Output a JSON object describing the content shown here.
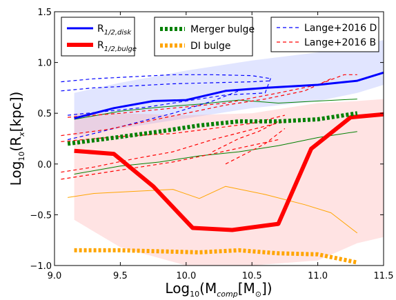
{
  "chart_data": {
    "type": "line",
    "xlabel": {
      "base": "Log",
      "base_sub": "10",
      "open": "(M",
      "sub": "comp",
      "mid": "[M",
      "sun": "⊙",
      "close": "])"
    },
    "ylabel": {
      "base": "Log",
      "base_sub": "10",
      "open": "(R",
      "sub": "x",
      "close": "[kpc])"
    },
    "xlim": [
      9.0,
      11.5
    ],
    "ylim": [
      -1.0,
      1.5
    ],
    "xticks": [
      "9.0",
      "9.5",
      "10.0",
      "10.5",
      "11.0",
      "11.5"
    ],
    "yticks": [
      "−1.0",
      "−0.5",
      "0.0",
      "0.5",
      "1.0",
      "1.5"
    ],
    "xtick_values": [
      9.0,
      9.5,
      10.0,
      10.5,
      11.0,
      11.5
    ],
    "ytick_values": [
      -1.0,
      -0.5,
      0.0,
      0.5,
      1.0,
      1.5
    ],
    "grid": false,
    "legends": [
      {
        "placement": "top-left",
        "entries": [
          {
            "label": "R",
            "sub": "1/2,disk",
            "color": "#0000ff",
            "style": "solid-thick"
          },
          {
            "label": "R",
            "sub": "1/2,bulge",
            "color": "#ff0000",
            "style": "solid-extra-thick"
          }
        ]
      },
      {
        "placement": "top-center",
        "entries": [
          {
            "label": "Merger bulge",
            "color": "#008000",
            "style": "dashdot-thick"
          },
          {
            "label": "DI bulge",
            "color": "#ffa500",
            "style": "dashdot-thick"
          }
        ]
      },
      {
        "placement": "top-right",
        "entries": [
          {
            "label": "Lange+2016 D",
            "color": "#0000ff",
            "style": "dashed"
          },
          {
            "label": "Lange+2016 B",
            "color": "#ff0000",
            "style": "dashed"
          }
        ]
      }
    ],
    "bands": [
      {
        "name": "disk band",
        "color": "#aab4ff",
        "opacity": 0.35,
        "x": [
          9.15,
          9.5,
          10.0,
          10.5,
          11.0,
          11.3,
          11.5
        ],
        "upper": [
          0.7,
          0.8,
          0.92,
          1.02,
          1.1,
          1.18,
          1.22
        ],
        "lower": [
          0.28,
          0.35,
          0.45,
          0.55,
          0.62,
          0.7,
          0.78
        ]
      },
      {
        "name": "bulge band",
        "color": "#ff9999",
        "opacity": 0.28,
        "x": [
          9.15,
          9.5,
          10.0,
          10.5,
          11.0,
          11.3,
          11.5
        ],
        "upper": [
          0.5,
          0.5,
          0.48,
          0.5,
          0.6,
          0.62,
          0.64
        ],
        "lower": [
          -0.55,
          -0.82,
          -1.0,
          -1.0,
          -0.95,
          -0.78,
          -0.72
        ]
      }
    ],
    "series": [
      {
        "name": "R_1/2,disk",
        "color": "#0000ff",
        "width": 3,
        "dash": "",
        "x": [
          9.15,
          9.45,
          9.75,
          10.0,
          10.3,
          10.6,
          11.0,
          11.3,
          11.5
        ],
        "y": [
          0.45,
          0.55,
          0.62,
          0.63,
          0.72,
          0.75,
          0.78,
          0.82,
          0.9
        ]
      },
      {
        "name": "R_1/2,bulge",
        "color": "#ff0000",
        "width": 6,
        "dash": "",
        "x": [
          9.15,
          9.45,
          9.75,
          10.05,
          10.35,
          10.7,
          10.95,
          11.25,
          11.5
        ],
        "y": [
          0.13,
          0.1,
          -0.22,
          -0.63,
          -0.65,
          -0.59,
          0.15,
          0.46,
          0.49
        ]
      },
      {
        "name": "Merger bulge",
        "color": "#008000",
        "width": 6,
        "dash": "4,3",
        "x": [
          9.1,
          9.4,
          9.8,
          10.1,
          10.4,
          10.7,
          11.0,
          11.3
        ],
        "y": [
          0.2,
          0.25,
          0.32,
          0.38,
          0.42,
          0.42,
          0.44,
          0.5
        ]
      },
      {
        "name": "DI bulge",
        "color": "#ffa500",
        "width": 6,
        "dash": "4,3",
        "x": [
          9.15,
          9.5,
          9.8,
          10.1,
          10.4,
          10.7,
          11.0,
          11.3
        ],
        "y": [
          -0.85,
          -0.85,
          -0.86,
          -0.87,
          -0.85,
          -0.88,
          -0.89,
          -0.97
        ]
      },
      {
        "name": "Merger bulge scatter upper",
        "color": "#008000",
        "width": 1,
        "dash": "",
        "x": [
          9.15,
          9.5,
          9.8,
          10.1,
          10.4,
          10.7,
          11.0,
          11.3
        ],
        "y": [
          0.44,
          0.52,
          0.56,
          0.59,
          0.63,
          0.6,
          0.62,
          0.64
        ]
      },
      {
        "name": "Merger bulge scatter lower",
        "color": "#008000",
        "width": 1,
        "dash": "",
        "x": [
          9.15,
          9.5,
          9.8,
          10.1,
          10.4,
          10.7,
          11.0,
          11.3
        ],
        "y": [
          -0.1,
          -0.02,
          0.02,
          0.08,
          0.12,
          0.18,
          0.26,
          0.32
        ]
      },
      {
        "name": "DI bulge scatter",
        "color": "#ffa500",
        "width": 1,
        "dash": "",
        "x": [
          9.1,
          9.3,
          9.6,
          9.9,
          10.1,
          10.3,
          10.6,
          10.9,
          11.1,
          11.3
        ],
        "y": [
          -0.33,
          -0.29,
          -0.27,
          -0.25,
          -0.34,
          -0.22,
          -0.3,
          -0.4,
          -0.48,
          -0.68
        ]
      },
      {
        "name": "Lange+2016 D upper",
        "color": "#0000ff",
        "width": 1.2,
        "dash": "5,4",
        "x": [
          9.05,
          9.3,
          9.6,
          9.9,
          10.2,
          10.5,
          10.65
        ],
        "y": [
          0.81,
          0.84,
          0.86,
          0.88,
          0.88,
          0.87,
          0.84
        ]
      },
      {
        "name": "Lange+2016 D upper2",
        "color": "#0000ff",
        "width": 1.2,
        "dash": "5,4",
        "x": [
          9.05,
          9.3,
          9.6,
          9.9,
          10.2,
          10.5,
          10.65
        ],
        "y": [
          0.72,
          0.75,
          0.77,
          0.79,
          0.8,
          0.81,
          0.82
        ]
      },
      {
        "name": "Lange+2016 D mid",
        "color": "#0000ff",
        "width": 1.2,
        "dash": "5,4",
        "x": [
          9.1,
          9.4,
          9.7,
          10.0,
          10.3,
          10.6,
          10.65
        ],
        "y": [
          0.48,
          0.52,
          0.56,
          0.62,
          0.68,
          0.7,
          0.87
        ]
      },
      {
        "name": "Lange+2016 D lower",
        "color": "#0000ff",
        "width": 1.2,
        "dash": "5,4",
        "x": [
          9.1,
          9.3,
          9.6,
          9.9,
          10.2,
          10.4
        ],
        "y": [
          0.24,
          0.3,
          0.4,
          0.5,
          0.62,
          0.72
        ]
      },
      {
        "name": "Lange+2016 B 1",
        "color": "#ff0000",
        "width": 1.2,
        "dash": "5,4",
        "x": [
          9.1,
          9.5,
          9.9,
          10.3,
          10.7,
          11.0,
          11.2,
          11.3
        ],
        "y": [
          0.46,
          0.5,
          0.55,
          0.6,
          0.7,
          0.78,
          0.88,
          0.88
        ]
      },
      {
        "name": "Lange+2016 B 2",
        "color": "#ff0000",
        "width": 1.2,
        "dash": "5,4",
        "x": [
          9.05,
          9.4,
          9.7,
          10.0,
          10.3,
          10.6,
          10.9,
          11.1
        ],
        "y": [
          0.28,
          0.34,
          0.42,
          0.5,
          0.58,
          0.64,
          0.72,
          0.84
        ]
      },
      {
        "name": "Lange+2016 B 3",
        "color": "#ff0000",
        "width": 1.2,
        "dash": "5,4",
        "x": [
          9.05,
          9.3,
          9.6,
          9.9,
          10.2,
          10.5,
          10.75
        ],
        "y": [
          0.22,
          0.25,
          0.28,
          0.3,
          0.35,
          0.4,
          0.48
        ]
      },
      {
        "name": "Lange+2016 B 4",
        "color": "#ff0000",
        "width": 1.2,
        "dash": "5,4",
        "x": [
          9.05,
          9.3,
          9.6,
          9.9,
          10.2,
          10.5,
          10.75
        ],
        "y": [
          -0.08,
          -0.03,
          0.05,
          0.12,
          0.24,
          0.34,
          0.42
        ]
      },
      {
        "name": "Lange+2016 B 5",
        "color": "#ff0000",
        "width": 1.2,
        "dash": "5,4",
        "x": [
          9.05,
          9.3,
          9.6,
          9.9,
          10.2,
          10.45,
          10.7
        ],
        "y": [
          -0.15,
          -0.1,
          -0.04,
          0.02,
          0.1,
          0.17,
          0.24
        ]
      },
      {
        "name": "Lange+2016 B 6",
        "color": "#ff0000",
        "width": 1.2,
        "dash": "5,4",
        "x": [
          10.2,
          10.4,
          10.55,
          10.7
        ],
        "y": [
          0.12,
          0.25,
          0.32,
          0.42
        ]
      },
      {
        "name": "Lange+2016 B 7",
        "color": "#ff0000",
        "width": 1.2,
        "dash": "5,4",
        "x": [
          10.3,
          10.45,
          10.6,
          10.75
        ],
        "y": [
          0.0,
          0.1,
          0.2,
          0.35
        ]
      }
    ]
  }
}
